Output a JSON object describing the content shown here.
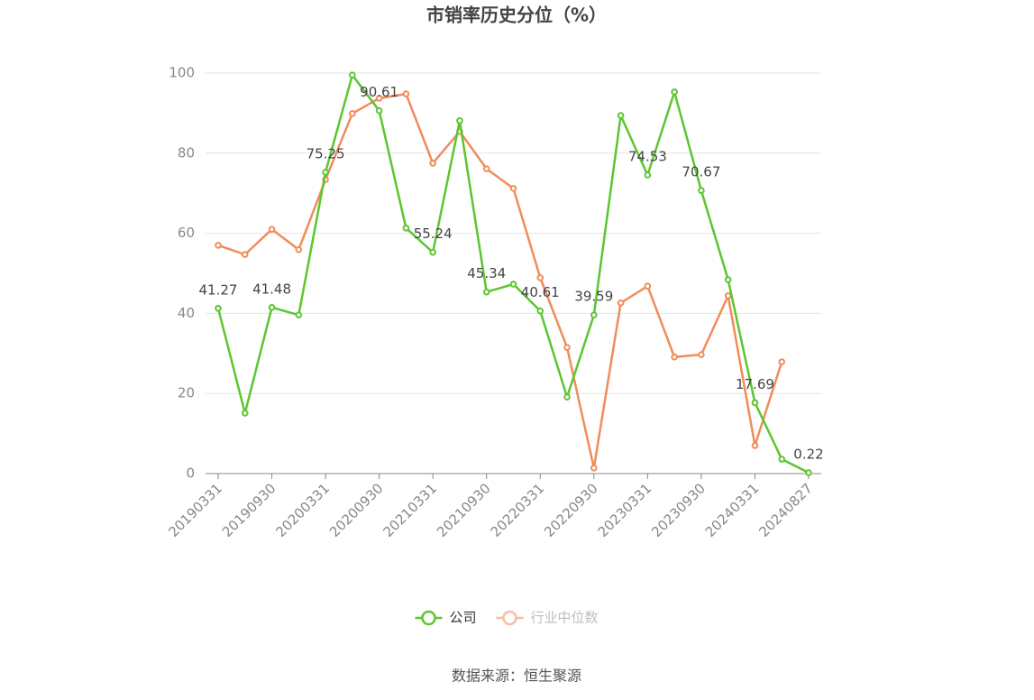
{
  "chart_data": {
    "type": "line",
    "title": "市销率历史分位（%）",
    "categories": [
      "20190331",
      null,
      "20190930",
      null,
      "20200331",
      null,
      "20200930",
      null,
      "20210331",
      null,
      "20210930",
      null,
      "20220331",
      null,
      "20220930",
      null,
      "20230331",
      null,
      "20230930",
      null,
      "20240331",
      null,
      "20240827"
    ],
    "series": [
      {
        "name": "公司",
        "color": "#5cc630",
        "values": [
          41.27,
          15.1,
          41.48,
          39.6,
          75.25,
          99.5,
          90.61,
          61.3,
          55.24,
          88.1,
          45.34,
          47.3,
          40.61,
          19.1,
          39.59,
          89.4,
          74.53,
          95.3,
          70.67,
          48.4,
          17.69,
          3.6,
          0.22
        ],
        "value_labels": [
          "41.27",
          null,
          "41.48",
          null,
          "75.25",
          null,
          "90.61",
          null,
          "55.24",
          null,
          "45.34",
          null,
          "40.61",
          null,
          "39.59",
          null,
          "74.53",
          null,
          "70.67",
          null,
          "17.69",
          null,
          "0.22"
        ]
      },
      {
        "name": "行业中位数",
        "color": "#f08c5a",
        "values": [
          57.0,
          54.7,
          61.0,
          55.9,
          73.4,
          89.9,
          93.7,
          94.8,
          77.5,
          85.4,
          76.1,
          71.2,
          48.9,
          31.5,
          1.4,
          42.6,
          46.8,
          29.1,
          29.7,
          44.4,
          7.0,
          27.9,
          null
        ]
      }
    ],
    "ylim": [
      0,
      100
    ],
    "yticks": [
      0,
      20,
      40,
      60,
      80,
      100
    ],
    "grid": true,
    "legend": "bottom",
    "source": "数据来源：恒生聚源"
  }
}
